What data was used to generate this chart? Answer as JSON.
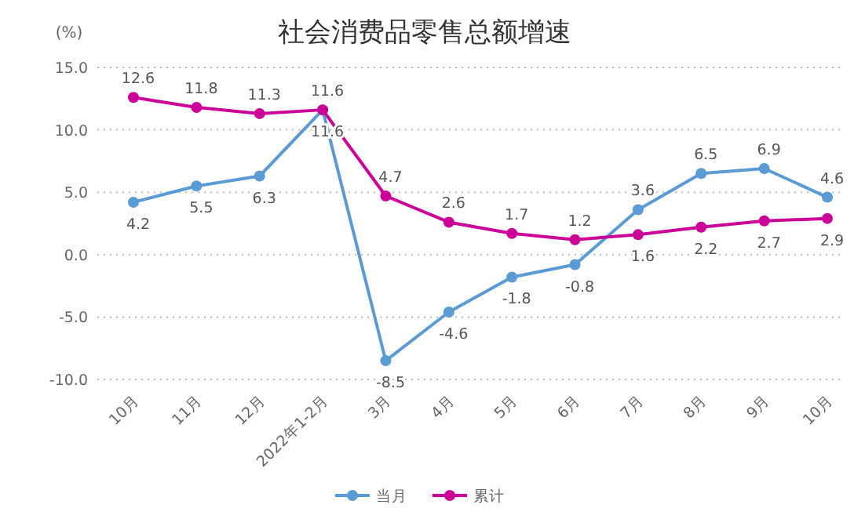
{
  "chart_data": {
    "type": "line",
    "title": "社会消费品零售总额增速",
    "ylabel": "(%)",
    "categories": [
      "10月",
      "11月",
      "12月",
      "2022年1-2月",
      "3月",
      "4月",
      "5月",
      "6月",
      "7月",
      "8月",
      "9月",
      "10月"
    ],
    "series": [
      {
        "name": "当月",
        "color": "#5b9bd5",
        "values": [
          4.2,
          5.5,
          6.3,
          11.6,
          -8.5,
          -4.6,
          -1.8,
          -0.8,
          3.6,
          6.5,
          6.9,
          4.6
        ]
      },
      {
        "name": "累计",
        "color": "#cc0099",
        "values": [
          12.6,
          11.8,
          11.3,
          11.6,
          4.7,
          2.6,
          1.7,
          1.2,
          1.6,
          2.2,
          2.7,
          2.9
        ]
      }
    ],
    "ylim": [
      -10,
      15
    ],
    "yticks": [
      {
        "value": -10,
        "label": "-10.0"
      },
      {
        "value": -5,
        "label": "-5.0"
      },
      {
        "value": 0,
        "label": "0.0"
      },
      {
        "value": 5,
        "label": "5.0"
      },
      {
        "value": 10,
        "label": "10.0"
      },
      {
        "value": 15,
        "label": "15.0"
      }
    ],
    "grid": "y",
    "legend": "bottom",
    "marker": "circle",
    "line_style": "solid",
    "data_labels": true
  }
}
